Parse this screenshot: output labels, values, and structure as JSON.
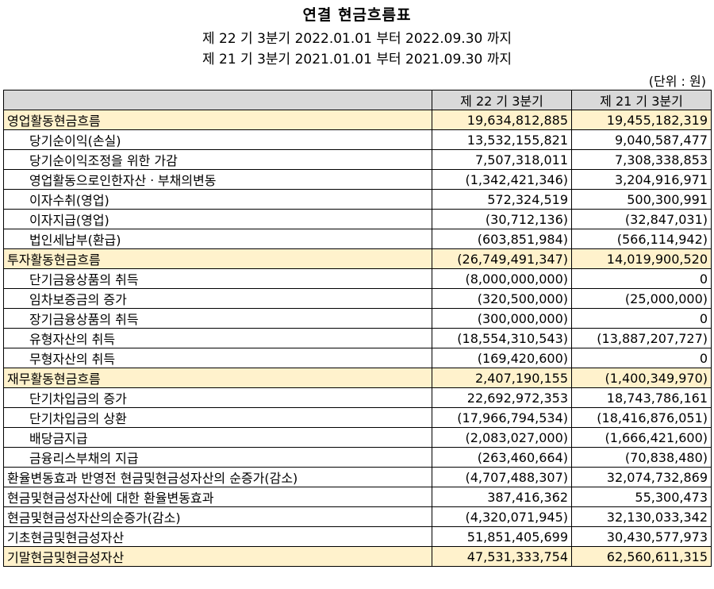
{
  "title": "연결 현금흐름표",
  "period1": "제 22 기 3분기 2022.01.01 부터 2022.09.30 까지",
  "period2": "제 21 기 3분기 2021.01.01 부터 2021.09.30 까지",
  "unit": "(단위 : 원)",
  "columns": [
    "",
    "제 22 기 3분기",
    "제 21 기 3분기"
  ],
  "rows": [
    {
      "label": "영업활동현금흐름",
      "v1": "19,634,812,885",
      "v2": "19,455,182,319",
      "section": true
    },
    {
      "label": "당기순이익(손실)",
      "v1": "13,532,155,821",
      "v2": "9,040,587,477",
      "indent": true
    },
    {
      "label": "당기순이익조정을 위한 가감",
      "v1": "7,507,318,011",
      "v2": "7,308,338,853",
      "indent": true
    },
    {
      "label": "영업활동으로인한자산ㆍ부채의변동",
      "v1": "(1,342,421,346)",
      "v2": "3,204,916,971",
      "indent": true
    },
    {
      "label": "이자수취(영업)",
      "v1": "572,324,519",
      "v2": "500,300,991",
      "indent": true
    },
    {
      "label": "이자지급(영업)",
      "v1": "(30,712,136)",
      "v2": "(32,847,031)",
      "indent": true
    },
    {
      "label": "법인세납부(환급)",
      "v1": "(603,851,984)",
      "v2": "(566,114,942)",
      "indent": true
    },
    {
      "label": "투자활동현금흐름",
      "v1": "(26,749,491,347)",
      "v2": "14,019,900,520",
      "section": true
    },
    {
      "label": "단기금융상품의 취득",
      "v1": "(8,000,000,000)",
      "v2": "0",
      "indent": true
    },
    {
      "label": "임차보증금의 증가",
      "v1": "(320,500,000)",
      "v2": "(25,000,000)",
      "indent": true
    },
    {
      "label": "장기금융상품의 취득",
      "v1": "(300,000,000)",
      "v2": "0",
      "indent": true
    },
    {
      "label": "유형자산의 취득",
      "v1": "(18,554,310,543)",
      "v2": "(13,887,207,727)",
      "indent": true
    },
    {
      "label": "무형자산의 취득",
      "v1": "(169,420,600)",
      "v2": "0",
      "indent": true
    },
    {
      "label": "재무활동현금흐름",
      "v1": "2,407,190,155",
      "v2": "(1,400,349,970)",
      "section": true
    },
    {
      "label": "단기차입금의 증가",
      "v1": "22,692,972,353",
      "v2": "18,743,786,161",
      "indent": true
    },
    {
      "label": "단기차입금의 상환",
      "v1": "(17,966,794,534)",
      "v2": "(18,416,876,051)",
      "indent": true
    },
    {
      "label": "배당금지급",
      "v1": "(2,083,027,000)",
      "v2": "(1,666,421,600)",
      "indent": true
    },
    {
      "label": "금융리스부채의 지급",
      "v1": "(263,460,664)",
      "v2": "(70,838,480)",
      "indent": true
    },
    {
      "label": "환율변동효과 반영전 현금및현금성자산의 순증가(감소)",
      "v1": "(4,707,488,307)",
      "v2": "32,074,732,869"
    },
    {
      "label": "현금및현금성자산에 대한 환율변동효과",
      "v1": "387,416,362",
      "v2": "55,300,473"
    },
    {
      "label": "현금및현금성자산의순증가(감소)",
      "v1": "(4,320,071,945)",
      "v2": "32,130,033,342"
    },
    {
      "label": "기초현금및현금성자산",
      "v1": "51,851,405,699",
      "v2": "30,430,577,973"
    },
    {
      "label": "기말현금및현금성자산",
      "v1": "47,531,333,754",
      "v2": "62,560,611,315",
      "section": true
    }
  ]
}
